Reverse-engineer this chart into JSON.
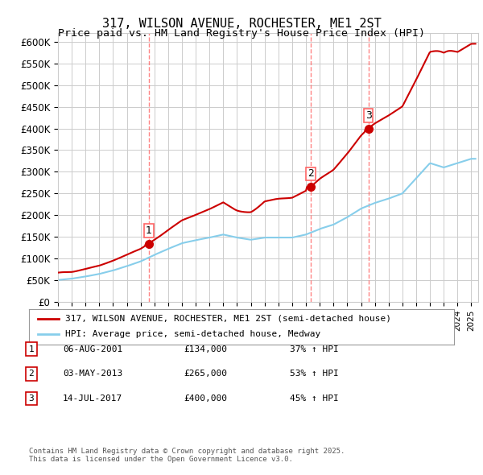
{
  "title": "317, WILSON AVENUE, ROCHESTER, ME1 2ST",
  "subtitle": "Price paid vs. HM Land Registry's House Price Index (HPI)",
  "ylabel_ticks": [
    "£0",
    "£50K",
    "£100K",
    "£150K",
    "£200K",
    "£250K",
    "£300K",
    "£350K",
    "£400K",
    "£450K",
    "£500K",
    "£550K",
    "£600K"
  ],
  "ytick_values": [
    0,
    50000,
    100000,
    150000,
    200000,
    250000,
    300000,
    350000,
    400000,
    450000,
    500000,
    550000,
    600000
  ],
  "ylim": [
    0,
    620000
  ],
  "xlim_start": 1995.0,
  "xlim_end": 2025.5,
  "hpi_color": "#87CEEB",
  "price_color": "#CC0000",
  "sale_marker_color": "#CC0000",
  "vline_color": "#FF6666",
  "grid_color": "#CCCCCC",
  "sale_points": [
    {
      "year": 2001.59,
      "price": 134000,
      "label": "1"
    },
    {
      "year": 2013.33,
      "price": 265000,
      "label": "2"
    },
    {
      "year": 2017.53,
      "price": 400000,
      "label": "3"
    }
  ],
  "legend_entries": [
    "317, WILSON AVENUE, ROCHESTER, ME1 2ST (semi-detached house)",
    "HPI: Average price, semi-detached house, Medway"
  ],
  "table_rows": [
    {
      "num": "1",
      "date": "06-AUG-2001",
      "price": "£134,000",
      "change": "37% ↑ HPI"
    },
    {
      "num": "2",
      "date": "03-MAY-2013",
      "price": "£265,000",
      "change": "53% ↑ HPI"
    },
    {
      "num": "3",
      "date": "14-JUL-2017",
      "price": "£400,000",
      "change": "45% ↑ HPI"
    }
  ],
  "footnote": "Contains HM Land Registry data © Crown copyright and database right 2025.\nThis data is licensed under the Open Government Licence v3.0.",
  "background_color": "#FFFFFF",
  "plot_bg_color": "#FFFFFF"
}
